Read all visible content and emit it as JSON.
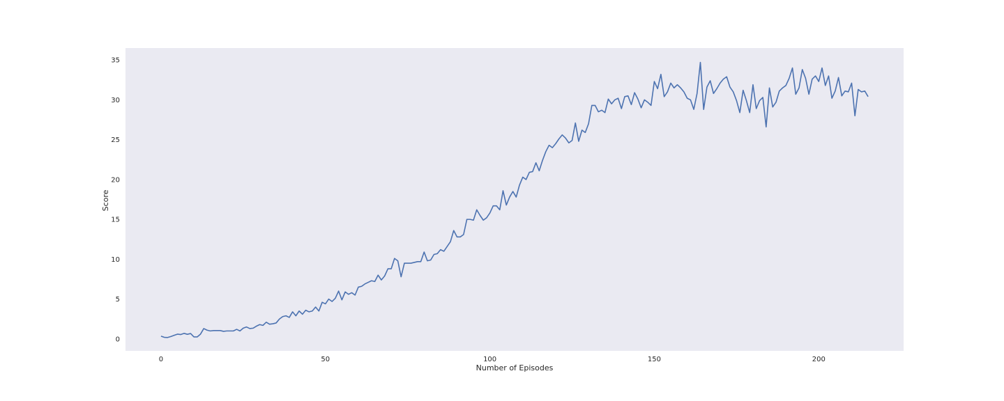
{
  "chart_data": {
    "type": "line",
    "title": "",
    "xlabel": "Number of Episodes",
    "ylabel": "Score",
    "xlim": [
      -10.8,
      225.8
    ],
    "ylim": [
      -1.5,
      36.5
    ],
    "xticks": [
      0,
      50,
      100,
      150,
      200
    ],
    "yticks": [
      0,
      5,
      10,
      15,
      20,
      25,
      30,
      35
    ],
    "grid": false,
    "legend": "none",
    "colors": {
      "background": "#eaeaf2",
      "line": "#4c72b0"
    },
    "series": [
      {
        "values": [
          0.35,
          0.2,
          0.18,
          0.3,
          0.45,
          0.6,
          0.55,
          0.7,
          0.58,
          0.68,
          0.25,
          0.25,
          0.6,
          1.3,
          1.1,
          1.0,
          1.05,
          1.05,
          1.05,
          0.95,
          1.0,
          1.0,
          1.0,
          1.2,
          1.0,
          1.35,
          1.5,
          1.3,
          1.35,
          1.6,
          1.8,
          1.7,
          2.1,
          1.85,
          1.9,
          2.0,
          2.5,
          2.8,
          2.9,
          2.7,
          3.4,
          2.9,
          3.5,
          3.1,
          3.6,
          3.4,
          3.5,
          4.0,
          3.5,
          4.6,
          4.4,
          5.0,
          4.7,
          5.1,
          6.0,
          4.9,
          5.9,
          5.6,
          5.8,
          5.5,
          6.5,
          6.6,
          6.9,
          7.1,
          7.3,
          7.2,
          8.0,
          7.4,
          7.9,
          8.8,
          8.8,
          10.1,
          9.8,
          7.8,
          9.5,
          9.5,
          9.5,
          9.6,
          9.7,
          9.7,
          10.9,
          9.8,
          9.9,
          10.6,
          10.7,
          11.2,
          11.0,
          11.6,
          12.2,
          13.6,
          12.8,
          12.8,
          13.1,
          15.0,
          15.0,
          14.9,
          16.2,
          15.5,
          14.9,
          15.2,
          15.8,
          16.7,
          16.7,
          16.2,
          18.6,
          16.8,
          17.8,
          18.5,
          17.8,
          19.3,
          20.3,
          20.0,
          20.9,
          21.0,
          22.1,
          21.1,
          22.4,
          23.5,
          24.3,
          24.0,
          24.5,
          25.1,
          25.6,
          25.2,
          24.6,
          24.9,
          27.1,
          24.8,
          26.2,
          25.9,
          27.0,
          29.3,
          29.3,
          28.5,
          28.7,
          28.4,
          30.1,
          29.5,
          30.0,
          30.2,
          28.9,
          30.4,
          30.5,
          29.4,
          30.9,
          30.1,
          29.0,
          30.0,
          29.7,
          29.3,
          32.3,
          31.4,
          33.2,
          30.4,
          31.0,
          32.1,
          31.5,
          31.9,
          31.5,
          31.0,
          30.2,
          30.0,
          28.8,
          30.8,
          34.7,
          28.8,
          31.6,
          32.4,
          30.8,
          31.4,
          32.1,
          32.6,
          32.9,
          31.6,
          31.0,
          29.9,
          28.4,
          31.2,
          29.9,
          28.4,
          31.9,
          28.9,
          29.9,
          30.3,
          26.6,
          31.5,
          29.1,
          29.7,
          31.1,
          31.5,
          31.8,
          32.7,
          34.0,
          30.7,
          31.5,
          33.8,
          32.7,
          30.7,
          32.6,
          33.0,
          32.3,
          34.0,
          31.8,
          33.0,
          30.2,
          31.1,
          32.8,
          30.5,
          31.1,
          31.0,
          32.1,
          28.0,
          31.3,
          31.0,
          31.1,
          30.4
        ]
      }
    ]
  }
}
